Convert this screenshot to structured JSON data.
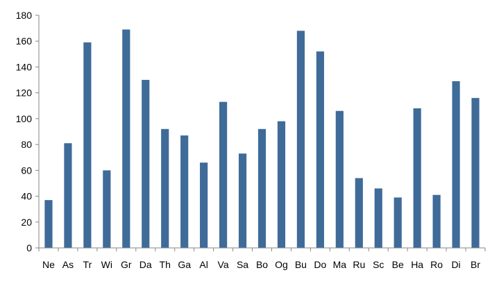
{
  "chart_data": {
    "type": "bar",
    "categories": [
      "Ne",
      "As",
      "Tr",
      "Wi",
      "Gr",
      "Da",
      "Th",
      "Ga",
      "Al",
      "Va",
      "Sa",
      "Bo",
      "Og",
      "Bu",
      "Do",
      "Ma",
      "Ru",
      "Sc",
      "Be",
      "Ha",
      "Ro",
      "Di",
      "Br"
    ],
    "values": [
      37,
      81,
      159,
      60,
      169,
      130,
      92,
      87,
      66,
      113,
      73,
      92,
      98,
      168,
      152,
      106,
      54,
      46,
      39,
      108,
      41,
      129,
      116
    ],
    "yticks": [
      "0",
      "20",
      "40",
      "60",
      "80",
      "100",
      "120",
      "140",
      "160",
      "180"
    ],
    "ylim": [
      0,
      180
    ],
    "grid": false,
    "legend": "none",
    "colors": {
      "bar": "#3F6B99",
      "axis": "#868686"
    }
  }
}
